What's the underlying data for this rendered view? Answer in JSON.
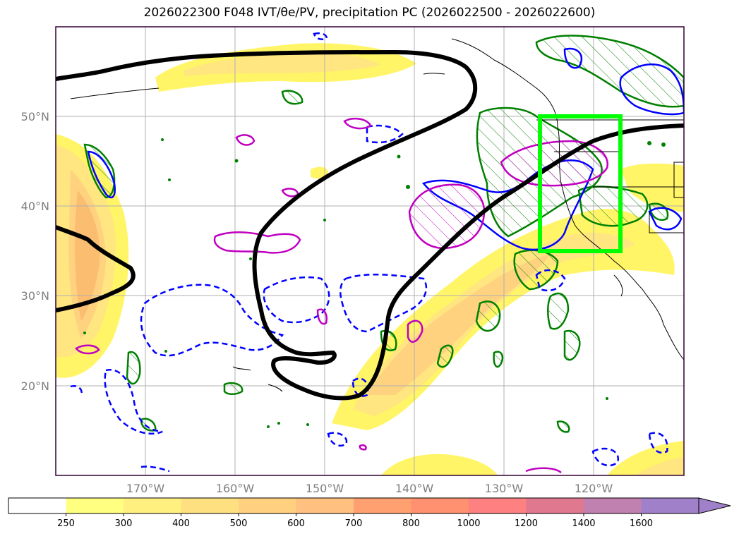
{
  "title": "2026022300 F048 IVT/θe/PV, precipitation PC (2026022500 - 2026022600)",
  "map": {
    "lat_labels": [
      "50°N",
      "40°N",
      "30°N",
      "20°N"
    ],
    "lon_labels": [
      "170°W",
      "160°W",
      "150°W",
      "140°W",
      "130°W",
      "120°W"
    ],
    "highlight_box_color": "#00ff00",
    "contour_colors": {
      "theta": "#000000",
      "pv": "#0000ff",
      "pv_dashed": "#0000ff",
      "precip": "#008000",
      "magenta": "#c000c0"
    },
    "ivt_fill_colors": [
      "#fff566",
      "#ffe680",
      "#ffd280",
      "#fbbd70"
    ]
  },
  "colorbar": {
    "ticks": [
      "250",
      "300",
      "400",
      "500",
      "600",
      "700",
      "800",
      "1000",
      "1200",
      "1400",
      "1600"
    ],
    "colors": [
      "#ffffff",
      "#ffff80",
      "#fff080",
      "#ffe080",
      "#ffd080",
      "#ffc080",
      "#ffa070",
      "#ff9070",
      "#ff8080",
      "#e07890",
      "#c080b0",
      "#a080c8"
    ]
  }
}
